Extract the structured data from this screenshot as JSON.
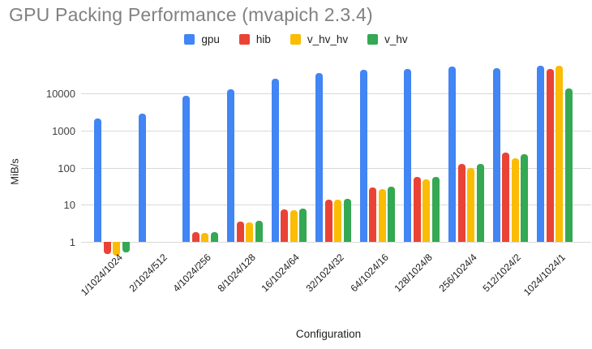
{
  "page": {
    "background": "#ffffff",
    "title_color": "#818181",
    "gridline_color": "#d9d9d9"
  },
  "chart_data": {
    "type": "bar",
    "title": "GPU Packing Performance (mvapich 2.3.4)",
    "xlabel": "Configuration",
    "ylabel": "MiB/s",
    "y_scale": "log",
    "y_ticks": [
      1,
      10,
      100,
      1000,
      10000
    ],
    "ylim": [
      0.4,
      65000
    ],
    "grid": true,
    "legend_position": "top",
    "categories": [
      "1/1024/1024",
      "2/1024/512",
      "4/1024/256",
      "8/1024/128",
      "16/1024/64",
      "32/1024/32",
      "64/1024/16",
      "128/1024/8",
      "256/1024/4",
      "512/1024/2",
      "1024/1024/1"
    ],
    "series": [
      {
        "name": "gpu",
        "color": "#4285F4",
        "values": [
          2100,
          2800,
          8600,
          13000,
          25000,
          35000,
          43000,
          45000,
          53000,
          48000,
          56000
        ]
      },
      {
        "name": "hib",
        "color": "#EA4335",
        "values": [
          0.47,
          1.0,
          1.8,
          3.5,
          7.5,
          14,
          29,
          55,
          125,
          250,
          46000
        ]
      },
      {
        "name": "v_hv_hv",
        "color": "#FBBC04",
        "values": [
          0.43,
          1.0,
          1.75,
          3.4,
          7.3,
          13.5,
          27,
          48,
          100,
          175,
          56000
        ]
      },
      {
        "name": "v_hv",
        "color": "#34A853",
        "values": [
          0.52,
          1.0,
          1.85,
          3.7,
          7.7,
          14.5,
          30,
          56,
          125,
          230,
          13500
        ]
      }
    ]
  }
}
